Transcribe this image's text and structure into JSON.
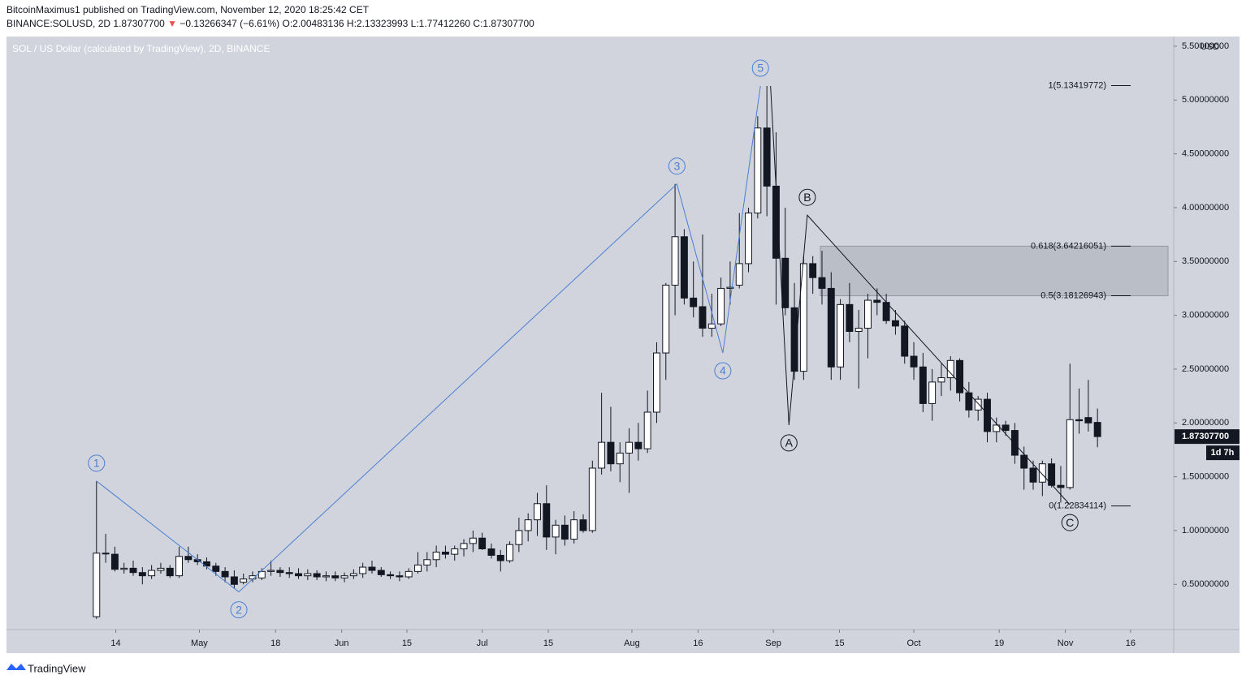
{
  "header": {
    "publisher": "BitcoinMaximus1 published on TradingView.com, November 12, 2020 18:25:42 CET",
    "symbol": "BINANCE:SOLUSD, 2D",
    "price": "1.87307700",
    "direction": "▼",
    "change": "−0.13266347 (−6.61%)",
    "ohlc": [
      "O:2.00483136",
      "H:2.13323993",
      "L:1.77412260",
      "C:1.87307700"
    ]
  },
  "footer": {
    "brand": "TradingView"
  },
  "chart_data": {
    "type": "candlestick",
    "title": "SOL / US Dollar (calculated by TradingView), 2D, BINANCE",
    "currency": "USD",
    "open": [
      0.2,
      0.79,
      0.78,
      0.64,
      0.65,
      0.61,
      0.58,
      0.63,
      0.65,
      0.58,
      0.76,
      0.73,
      0.71,
      0.67,
      0.62,
      0.57,
      0.52,
      0.55,
      0.56,
      0.62,
      0.63,
      0.61,
      0.6,
      0.58,
      0.6,
      0.57,
      0.58,
      0.56,
      0.58,
      0.6,
      0.66,
      0.63,
      0.59,
      0.58,
      0.57,
      0.62,
      0.68,
      0.73,
      0.8,
      0.78,
      0.83,
      0.88,
      0.93,
      0.83,
      0.77,
      0.72,
      0.87,
      1.0,
      1.1,
      1.25,
      0.94,
      1.05,
      0.92,
      1.1,
      1.0,
      1.58,
      1.82,
      1.62,
      1.72,
      1.82,
      1.76,
      2.1,
      2.65,
      3.28,
      3.73,
      3.16,
      3.08,
      2.88,
      2.92,
      3.25,
      3.28,
      3.48,
      3.95,
      4.74,
      4.2,
      3.53,
      3.07,
      2.48,
      3.48,
      3.35,
      3.25,
      2.52,
      3.1,
      2.85,
      2.88,
      3.14,
      3.12,
      2.95,
      2.9,
      2.62,
      2.52,
      2.18,
      2.38,
      2.42,
      2.58,
      2.28,
      2.12,
      2.22,
      1.92,
      1.98,
      1.93,
      1.7,
      1.58,
      1.45,
      1.62,
      1.42,
      1.4,
      2.03,
      2.05,
      2.00483136
    ],
    "high": [
      1.46,
      0.97,
      0.85,
      0.7,
      0.72,
      0.66,
      0.68,
      0.7,
      0.68,
      0.85,
      0.85,
      0.78,
      0.75,
      0.7,
      0.66,
      0.63,
      0.6,
      0.62,
      0.65,
      0.72,
      0.66,
      0.66,
      0.65,
      0.64,
      0.63,
      0.62,
      0.62,
      0.61,
      0.64,
      0.7,
      0.72,
      0.66,
      0.62,
      0.62,
      0.65,
      0.8,
      0.8,
      0.86,
      0.86,
      0.86,
      0.92,
      1.0,
      0.98,
      0.88,
      0.82,
      0.9,
      1.12,
      1.16,
      1.35,
      1.42,
      1.1,
      1.14,
      1.18,
      1.15,
      1.65,
      2.28,
      2.15,
      1.82,
      1.95,
      2.0,
      2.3,
      2.75,
      3.3,
      4.22,
      3.8,
      3.5,
      3.75,
      3.2,
      3.35,
      3.5,
      3.95,
      4.0,
      4.85,
      5.13,
      4.7,
      4.0,
      3.3,
      3.55,
      3.55,
      3.6,
      3.4,
      3.15,
      3.3,
      3.05,
      3.2,
      3.25,
      3.2,
      3.05,
      2.95,
      2.75,
      2.65,
      2.5,
      2.55,
      2.62,
      2.6,
      2.38,
      2.25,
      2.28,
      2.05,
      2.02,
      2.0,
      1.78,
      1.65,
      1.65,
      1.67,
      1.6,
      2.55,
      2.32,
      2.4,
      2.13323993
    ],
    "low": [
      0.18,
      0.7,
      0.62,
      0.6,
      0.58,
      0.5,
      0.55,
      0.6,
      0.56,
      0.56,
      0.7,
      0.68,
      0.64,
      0.58,
      0.52,
      0.46,
      0.5,
      0.52,
      0.54,
      0.58,
      0.57,
      0.56,
      0.55,
      0.54,
      0.54,
      0.53,
      0.53,
      0.52,
      0.55,
      0.56,
      0.6,
      0.57,
      0.55,
      0.53,
      0.55,
      0.6,
      0.62,
      0.66,
      0.74,
      0.72,
      0.76,
      0.8,
      0.82,
      0.74,
      0.62,
      0.7,
      0.8,
      0.9,
      0.95,
      0.82,
      0.78,
      0.86,
      0.88,
      0.98,
      0.98,
      1.52,
      1.55,
      1.45,
      1.35,
      1.65,
      1.72,
      2.0,
      2.4,
      3.0,
      3.1,
      2.98,
      2.8,
      2.8,
      2.9,
      3.1,
      3.25,
      3.4,
      3.9,
      3.92,
      3.1,
      3.0,
      2.4,
      2.4,
      3.2,
      3.1,
      2.4,
      2.4,
      2.75,
      2.32,
      2.6,
      3.0,
      2.92,
      2.82,
      2.55,
      2.4,
      2.1,
      2.02,
      2.25,
      2.3,
      2.2,
      2.05,
      2.02,
      1.82,
      1.82,
      1.88,
      1.62,
      1.38,
      1.38,
      1.32,
      1.4,
      1.26,
      1.38,
      1.9,
      1.92,
      1.7741226
    ],
    "close": [
      0.79,
      0.79,
      0.64,
      0.65,
      0.61,
      0.58,
      0.63,
      0.65,
      0.58,
      0.76,
      0.73,
      0.71,
      0.67,
      0.62,
      0.57,
      0.5,
      0.55,
      0.58,
      0.62,
      0.63,
      0.61,
      0.6,
      0.58,
      0.6,
      0.57,
      0.58,
      0.56,
      0.58,
      0.6,
      0.66,
      0.63,
      0.59,
      0.58,
      0.57,
      0.62,
      0.68,
      0.73,
      0.8,
      0.78,
      0.83,
      0.88,
      0.93,
      0.83,
      0.77,
      0.72,
      0.87,
      1.0,
      1.1,
      1.25,
      0.94,
      1.05,
      0.92,
      1.1,
      1.0,
      1.58,
      1.82,
      1.62,
      1.72,
      1.82,
      1.76,
      2.1,
      2.65,
      3.28,
      3.73,
      3.16,
      3.08,
      2.88,
      2.92,
      3.25,
      3.26,
      3.48,
      3.95,
      4.74,
      4.2,
      3.53,
      3.07,
      2.48,
      3.48,
      3.35,
      3.25,
      2.52,
      3.1,
      2.85,
      2.88,
      3.14,
      3.12,
      2.95,
      2.9,
      2.62,
      2.52,
      2.18,
      2.38,
      2.42,
      2.58,
      2.28,
      2.12,
      2.22,
      1.92,
      1.98,
      1.93,
      1.7,
      1.58,
      1.45,
      1.62,
      1.42,
      1.4,
      2.03,
      2.02,
      2.0,
      1.873077
    ],
    "up_color": "#ffffff",
    "down_color": "#131722",
    "xlim": [
      -9.8,
      117.3
    ],
    "xticks": [
      {
        "value": 2.1,
        "label": "14"
      },
      {
        "value": 11.2,
        "label": "May"
      },
      {
        "value": 19.5,
        "label": "18"
      },
      {
        "value": 26.7,
        "label": "Jun"
      },
      {
        "value": 33.8,
        "label": "15"
      },
      {
        "value": 42.0,
        "label": "Jul"
      },
      {
        "value": 49.2,
        "label": "15"
      },
      {
        "value": 58.3,
        "label": "Aug"
      },
      {
        "value": 65.5,
        "label": "16"
      },
      {
        "value": 73.7,
        "label": "Sep"
      },
      {
        "value": 80.9,
        "label": "15"
      },
      {
        "value": 89.0,
        "label": "Oct"
      },
      {
        "value": 98.3,
        "label": "19"
      },
      {
        "value": 105.5,
        "label": "Nov"
      },
      {
        "value": 112.6,
        "label": "16"
      }
    ],
    "ylim": [
      0.08,
      5.59
    ],
    "yticks": [
      {
        "value": 0.5,
        "label": "0.50000000"
      },
      {
        "value": 1.0,
        "label": "1.00000000"
      },
      {
        "value": 1.5,
        "label": "1.50000000"
      },
      {
        "value": 2.0,
        "label": "2.00000000"
      },
      {
        "value": 2.5,
        "label": "2.50000000"
      },
      {
        "value": 3.0,
        "label": "3.00000000"
      },
      {
        "value": 3.5,
        "label": "3.50000000"
      },
      {
        "value": 4.0,
        "label": "4.00000000"
      },
      {
        "value": 4.5,
        "label": "4.50000000"
      },
      {
        "value": 5.0,
        "label": "5.00000000"
      },
      {
        "value": 5.5,
        "label": "5.50000000"
      }
    ],
    "last_price": {
      "value": 1.873077,
      "label": "1.87307700",
      "countdown": "1d 7h"
    },
    "waves": [
      {
        "color": "#4a7fd4",
        "labels": [
          "1",
          "2",
          "3",
          "4",
          "5"
        ],
        "x": [
          0,
          15.5,
          63.2,
          68.2,
          72.3
        ],
        "y": [
          1.46,
          0.43,
          4.22,
          2.65,
          5.13
        ],
        "label_pos": [
          "above",
          "below",
          "above",
          "below",
          "above"
        ]
      },
      {
        "color": "#131722",
        "labels": [
          null,
          "A",
          "B",
          "C"
        ],
        "x": [
          73.4,
          75.4,
          77.4,
          106
        ],
        "y": [
          5.13,
          1.98,
          3.93,
          1.24
        ],
        "label_pos": [
          "above",
          "below",
          "above",
          "below"
        ]
      }
    ],
    "fib": [
      {
        "label": "1(5.13419772)",
        "value": 5.13419772
      },
      {
        "label": "0.618(3.64216051)",
        "value": 3.64216051
      },
      {
        "label": "0.5(3.18126943)",
        "value": 3.18126943
      },
      {
        "label": "0(1.22834114)",
        "value": 1.22834114
      }
    ]
  }
}
